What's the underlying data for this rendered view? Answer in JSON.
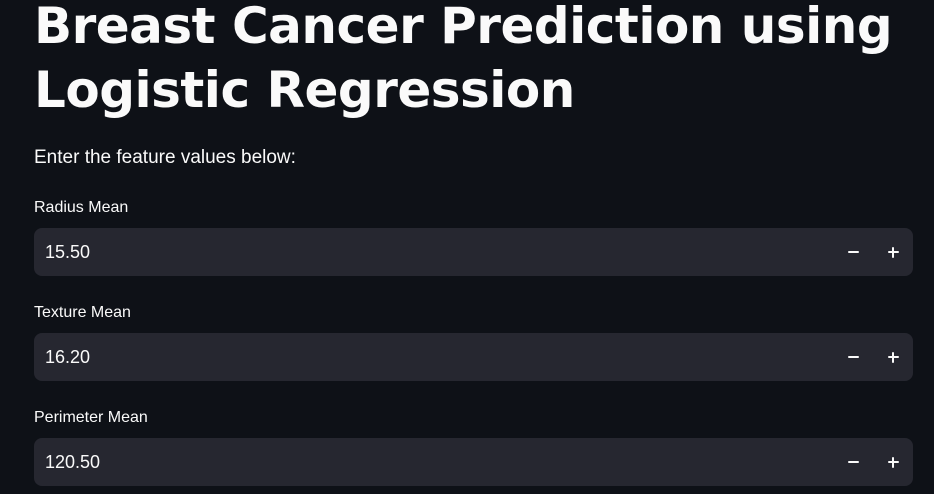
{
  "page": {
    "title": "Breast Cancer Prediction using Logistic Regression",
    "intro": "Enter the feature values below:"
  },
  "fields": [
    {
      "label": "Radius Mean",
      "value": "15.50"
    },
    {
      "label": "Texture Mean",
      "value": "16.20"
    },
    {
      "label": "Perimeter Mean",
      "value": "120.50"
    }
  ],
  "icons": {
    "decrement": "minus-icon",
    "increment": "plus-icon"
  },
  "colors": {
    "background": "#0e1117",
    "input_background": "#262730",
    "text": "#fafafa"
  }
}
